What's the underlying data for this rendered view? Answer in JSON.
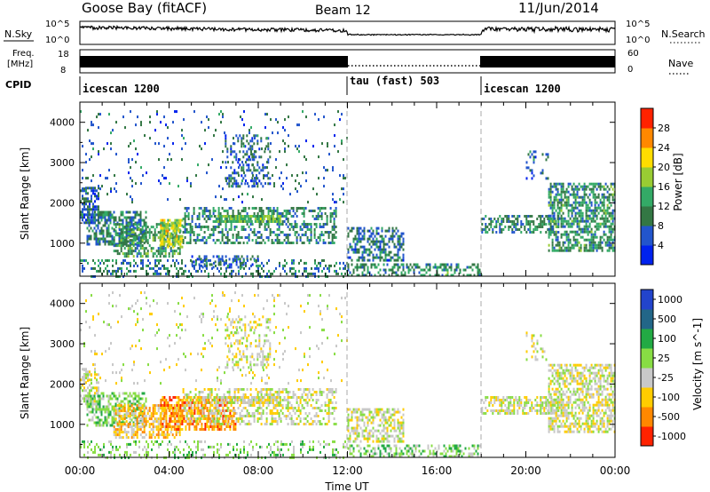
{
  "header": {
    "station": "Goose Bay (fitACF)",
    "beam": "Beam 12",
    "date": "11/Jun/2014"
  },
  "strip_labels": {
    "nsky": "N.Sky",
    "nsky_top": "10^5",
    "nsky_bottom": "10^0",
    "freq_line1": "Freq.",
    "freq_line2": "[MHz]",
    "freq_top": "18",
    "freq_bottom": "8",
    "cpid": "CPID",
    "nsearch": "N.Search",
    "nsearch_top": "10^5",
    "nsearch_bottom": "10^0",
    "nave": "Nave",
    "nave_top": "60",
    "nave_bottom": "0"
  },
  "cpid_segments": [
    {
      "label": "icescan 1200",
      "start": 0,
      "end": 12
    },
    {
      "label": "tau (fast) 503",
      "start": 12,
      "end": 18
    },
    {
      "label": "icescan 1200",
      "start": 18,
      "end": 24
    }
  ],
  "chart_data": [
    {
      "type": "heatmap",
      "panel": "power",
      "xlabel": "",
      "ylabel": "Slant Range [km]",
      "xlim": [
        0,
        24
      ],
      "ylim": [
        180,
        4500
      ],
      "yticks": [
        1000,
        2000,
        3000,
        4000
      ],
      "mode_change_lines": [
        12,
        18
      ],
      "colorbar": {
        "label": "Power [dB]",
        "ticks": [
          "4",
          "8",
          "12",
          "16",
          "20",
          "24",
          "28"
        ],
        "range": [
          0,
          30
        ],
        "colors": [
          "#0022ee",
          "#2255cc",
          "#337744",
          "#33aa66",
          "#99cc33",
          "#ffdd00",
          "#ff8800",
          "#ff2200"
        ]
      },
      "regions": [
        {
          "x": [
            0.0,
            0.8
          ],
          "y": [
            1500,
            2400
          ],
          "level": 6,
          "density": 0.65
        },
        {
          "x": [
            0.3,
            3.0
          ],
          "y": [
            1000,
            1800
          ],
          "level": 8,
          "density": 0.6
        },
        {
          "x": [
            1.5,
            4.5
          ],
          "y": [
            700,
            1500
          ],
          "level": 11,
          "density": 0.55
        },
        {
          "x": [
            3.6,
            4.6
          ],
          "y": [
            900,
            1600
          ],
          "level": 19,
          "density": 0.75
        },
        {
          "x": [
            4.6,
            11.5
          ],
          "y": [
            1000,
            1900
          ],
          "level": 9,
          "density": 0.45
        },
        {
          "x": [
            6.0,
            9.0
          ],
          "y": [
            1550,
            1700
          ],
          "level": 14,
          "density": 0.85
        },
        {
          "x": [
            6.5,
            8.5
          ],
          "y": [
            2400,
            3700
          ],
          "level": 6,
          "density": 0.3
        },
        {
          "x": [
            5.0,
            8.0
          ],
          "y": [
            400,
            700
          ],
          "level": 6,
          "density": 0.4
        },
        {
          "x": [
            0.0,
            12.0
          ],
          "y": [
            2000,
            4300
          ],
          "level": 6,
          "density": 0.05
        },
        {
          "x": [
            12.0,
            14.5
          ],
          "y": [
            600,
            1400
          ],
          "level": 7,
          "density": 0.5
        },
        {
          "x": [
            12.0,
            18.0
          ],
          "y": [
            180,
            500
          ],
          "level": 10,
          "density": 0.45
        },
        {
          "x": [
            18.0,
            21.5
          ],
          "y": [
            1300,
            1700
          ],
          "level": 9,
          "density": 0.5
        },
        {
          "x": [
            21.0,
            24.0
          ],
          "y": [
            800,
            2500
          ],
          "level": 10,
          "density": 0.6
        },
        {
          "x": [
            20.0,
            21.0
          ],
          "y": [
            2600,
            3300
          ],
          "level": 6,
          "density": 0.15
        },
        {
          "x": [
            0.0,
            12.0
          ],
          "y": [
            180,
            600
          ],
          "level": 8,
          "density": 0.3
        }
      ]
    },
    {
      "type": "heatmap",
      "panel": "velocity",
      "xlabel": "Time UT",
      "ylabel": "Slant Range [km]",
      "xlim": [
        0,
        24
      ],
      "ylim": [
        180,
        4500
      ],
      "xticks": [
        "00:00",
        "04:00",
        "08:00",
        "12:00",
        "16:00",
        "20:00",
        "00:00"
      ],
      "yticks": [
        1000,
        2000,
        3000,
        4000
      ],
      "mode_change_lines": [
        12,
        18
      ],
      "colorbar": {
        "label": "Velocity [m s^-1]",
        "ticks": [
          "1000",
          "500",
          "100",
          "25",
          "-25",
          "-100",
          "-500",
          "-1000"
        ],
        "range": [
          -1000,
          1000
        ],
        "colors": [
          "#2244cc",
          "#226688",
          "#22aa44",
          "#88dd44",
          "#c8c8c8",
          "#ffcc00",
          "#ff8800",
          "#ff2200"
        ]
      },
      "regions": [
        {
          "x": [
            0.0,
            0.8
          ],
          "y": [
            1500,
            2400
          ],
          "level": 4,
          "density": 0.5
        },
        {
          "x": [
            0.3,
            3.0
          ],
          "y": [
            1000,
            1800
          ],
          "level": 3,
          "density": 0.55
        },
        {
          "x": [
            1.5,
            4.5
          ],
          "y": [
            700,
            1500
          ],
          "level": 5,
          "density": 0.6
        },
        {
          "x": [
            3.6,
            7.0
          ],
          "y": [
            900,
            1700
          ],
          "level": 6,
          "density": 0.6
        },
        {
          "x": [
            4.6,
            11.5
          ],
          "y": [
            1000,
            1900
          ],
          "level": 4,
          "density": 0.45
        },
        {
          "x": [
            6.0,
            9.0
          ],
          "y": [
            1550,
            1700
          ],
          "level": 4,
          "density": 0.8
        },
        {
          "x": [
            6.5,
            8.5
          ],
          "y": [
            2400,
            3700
          ],
          "level": 4,
          "density": 0.3
        },
        {
          "x": [
            0.0,
            12.0
          ],
          "y": [
            2000,
            4300
          ],
          "level": 4,
          "density": 0.05
        },
        {
          "x": [
            12.0,
            14.5
          ],
          "y": [
            600,
            1400
          ],
          "level": 4,
          "density": 0.5
        },
        {
          "x": [
            12.0,
            18.0
          ],
          "y": [
            180,
            500
          ],
          "level": 3,
          "density": 0.4
        },
        {
          "x": [
            18.0,
            21.5
          ],
          "y": [
            1300,
            1700
          ],
          "level": 4,
          "density": 0.55
        },
        {
          "x": [
            21.0,
            24.0
          ],
          "y": [
            800,
            2500
          ],
          "level": 4,
          "density": 0.6
        },
        {
          "x": [
            20.0,
            21.0
          ],
          "y": [
            2600,
            3300
          ],
          "level": 4,
          "density": 0.15
        },
        {
          "x": [
            0.0,
            12.0
          ],
          "y": [
            180,
            600
          ],
          "level": 3,
          "density": 0.25
        }
      ]
    }
  ]
}
